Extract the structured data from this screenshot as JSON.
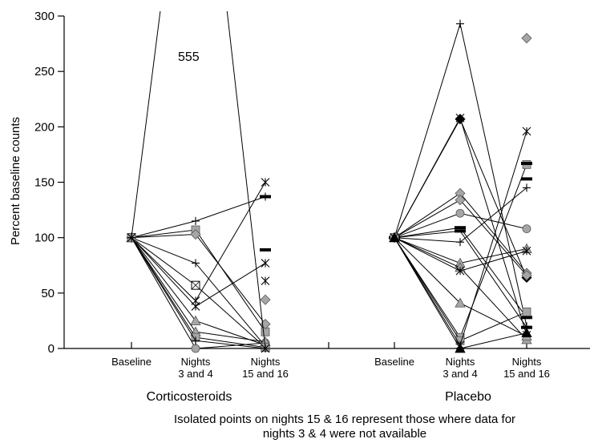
{
  "chart_data": {
    "type": "line",
    "ylabel": "Percent baseline counts",
    "ylim": [
      0,
      300
    ],
    "yticks": [
      0,
      50,
      100,
      150,
      200,
      250,
      300
    ],
    "x_tick_labels": [
      "Baseline",
      "Nights\n3 and 4",
      "Nights\n15 and 16"
    ],
    "off_scale_annotation": "555",
    "caption": "Isolated points on nights 15 & 16 represent those where data for nights 3 & 4 were not available",
    "colors": {
      "line": "#000000",
      "marker_fill": "#a6a6a6",
      "marker_stroke": "#555555",
      "axis": "#000000"
    },
    "panels": [
      {
        "name": "Corticosteroids",
        "series": [
          {
            "marker": "plus",
            "values": [
              100,
              115,
              137
            ]
          },
          {
            "marker": "circle",
            "values": [
              100,
              0,
              5
            ]
          },
          {
            "marker": "square",
            "values": [
              100,
              107,
              15
            ]
          },
          {
            "marker": "diamond",
            "values": [
              100,
              103,
              22
            ]
          },
          {
            "marker": "plus",
            "values": [
              100,
              77,
              2
            ]
          },
          {
            "marker": "boxx",
            "values": [
              100,
              57,
              1
            ]
          },
          {
            "marker": "asterisk",
            "values": [
              100,
              43,
              150
            ]
          },
          {
            "marker": "asterisk",
            "values": [
              100,
              38,
              77
            ]
          },
          {
            "marker": "triangle",
            "values": [
              100,
              25,
              3
            ]
          },
          {
            "marker": "triangle",
            "values": [
              100,
              15,
              6
            ]
          },
          {
            "marker": "square",
            "values": [
              100,
              10,
              1
            ]
          },
          {
            "marker": "plus",
            "values": [
              100,
              7,
              0
            ]
          },
          {
            "marker": "star",
            "values": [
              100,
              555,
              0
            ]
          }
        ],
        "isolated": [
          {
            "marker": "asterisk",
            "value": 61
          },
          {
            "marker": "diamond",
            "value": 44
          },
          {
            "marker": "dash",
            "value": 89
          },
          {
            "marker": "dash",
            "value": 137
          }
        ]
      },
      {
        "name": "Placebo",
        "series": [
          {
            "marker": "plus",
            "values": [
              100,
              293,
              20
            ]
          },
          {
            "marker": "filled-diamond",
            "values": [
              100,
              207,
              64
            ]
          },
          {
            "marker": "asterisk",
            "values": [
              100,
              208,
              12
            ]
          },
          {
            "marker": "diamond",
            "values": [
              100,
              140,
              68
            ]
          },
          {
            "marker": "diamond",
            "values": [
              100,
              134,
              66
            ]
          },
          {
            "marker": "circle",
            "values": [
              100,
              122,
              108
            ]
          },
          {
            "marker": "dash",
            "values": [
              100,
              109,
              28
            ]
          },
          {
            "marker": "dash",
            "values": [
              100,
              106,
              19
            ]
          },
          {
            "marker": "plus",
            "values": [
              100,
              96,
              145
            ]
          },
          {
            "marker": "triangle",
            "values": [
              100,
              77,
              90
            ]
          },
          {
            "marker": "triangle",
            "values": [
              100,
              73,
              8
            ]
          },
          {
            "marker": "asterisk",
            "values": [
              100,
              70,
              88
            ]
          },
          {
            "marker": "triangle",
            "values": [
              100,
              41,
              11
            ]
          },
          {
            "marker": "square",
            "values": [
              100,
              10,
              166
            ]
          },
          {
            "marker": "square",
            "values": [
              100,
              7,
              33
            ]
          },
          {
            "marker": "asterisk",
            "values": [
              100,
              3,
              196
            ]
          },
          {
            "marker": "filled-triangle",
            "values": [
              100,
              0,
              14
            ]
          }
        ],
        "isolated": [
          {
            "marker": "diamond",
            "value": 280
          },
          {
            "marker": "dash",
            "value": 153
          },
          {
            "marker": "dash",
            "value": 167
          }
        ]
      }
    ]
  }
}
